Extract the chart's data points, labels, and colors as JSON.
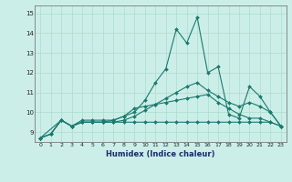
{
  "xlabel": "Humidex (Indice chaleur)",
  "background_color": "#cceee8",
  "grid_color": "#aaddcc",
  "line_color": "#1a7a6e",
  "xlim": [
    -0.5,
    23.5
  ],
  "ylim": [
    8.5,
    15.4
  ],
  "xticks": [
    0,
    1,
    2,
    3,
    4,
    5,
    6,
    7,
    8,
    9,
    10,
    11,
    12,
    13,
    14,
    15,
    16,
    17,
    18,
    19,
    20,
    21,
    22,
    23
  ],
  "yticks": [
    9,
    10,
    11,
    12,
    13,
    14,
    15
  ],
  "line1_x": [
    0,
    1,
    2,
    3,
    4,
    5,
    6,
    7,
    8,
    9,
    10,
    11,
    12,
    13,
    14,
    15,
    16,
    17,
    18,
    19,
    20,
    21,
    22,
    23
  ],
  "line1_y": [
    8.7,
    8.9,
    9.6,
    9.3,
    9.6,
    9.6,
    9.6,
    9.6,
    9.8,
    10.0,
    10.6,
    11.5,
    12.2,
    14.2,
    13.5,
    14.8,
    12.0,
    12.3,
    9.9,
    9.7,
    11.3,
    10.8,
    10.0,
    9.3
  ],
  "line2_x": [
    0,
    1,
    2,
    3,
    4,
    5,
    6,
    7,
    8,
    9,
    10,
    11,
    12,
    13,
    14,
    15,
    16,
    17,
    18,
    19,
    20,
    21,
    22,
    23
  ],
  "line2_y": [
    8.7,
    8.9,
    9.6,
    9.3,
    9.5,
    9.5,
    9.5,
    9.5,
    9.6,
    9.8,
    10.1,
    10.4,
    10.7,
    11.0,
    11.3,
    11.5,
    11.1,
    10.8,
    10.5,
    10.3,
    10.5,
    10.3,
    10.0,
    9.3
  ],
  "line3_x": [
    0,
    1,
    2,
    3,
    4,
    5,
    6,
    7,
    8,
    9,
    10,
    11,
    12,
    13,
    14,
    15,
    16,
    17,
    18,
    19,
    20,
    21,
    22,
    23
  ],
  "line3_y": [
    8.7,
    8.9,
    9.6,
    9.3,
    9.5,
    9.5,
    9.5,
    9.5,
    9.5,
    9.5,
    9.5,
    9.5,
    9.5,
    9.5,
    9.5,
    9.5,
    9.5,
    9.5,
    9.5,
    9.5,
    9.5,
    9.5,
    9.5,
    9.3
  ],
  "line4_x": [
    0,
    2,
    3,
    4,
    5,
    6,
    7,
    8,
    9,
    10,
    11,
    12,
    13,
    14,
    15,
    16,
    17,
    18,
    19,
    20,
    21,
    22,
    23
  ],
  "line4_y": [
    8.7,
    9.6,
    9.3,
    9.5,
    9.5,
    9.5,
    9.6,
    9.8,
    10.2,
    10.3,
    10.4,
    10.5,
    10.6,
    10.7,
    10.8,
    10.9,
    10.5,
    10.2,
    9.9,
    9.7,
    9.7,
    9.5,
    9.3
  ]
}
